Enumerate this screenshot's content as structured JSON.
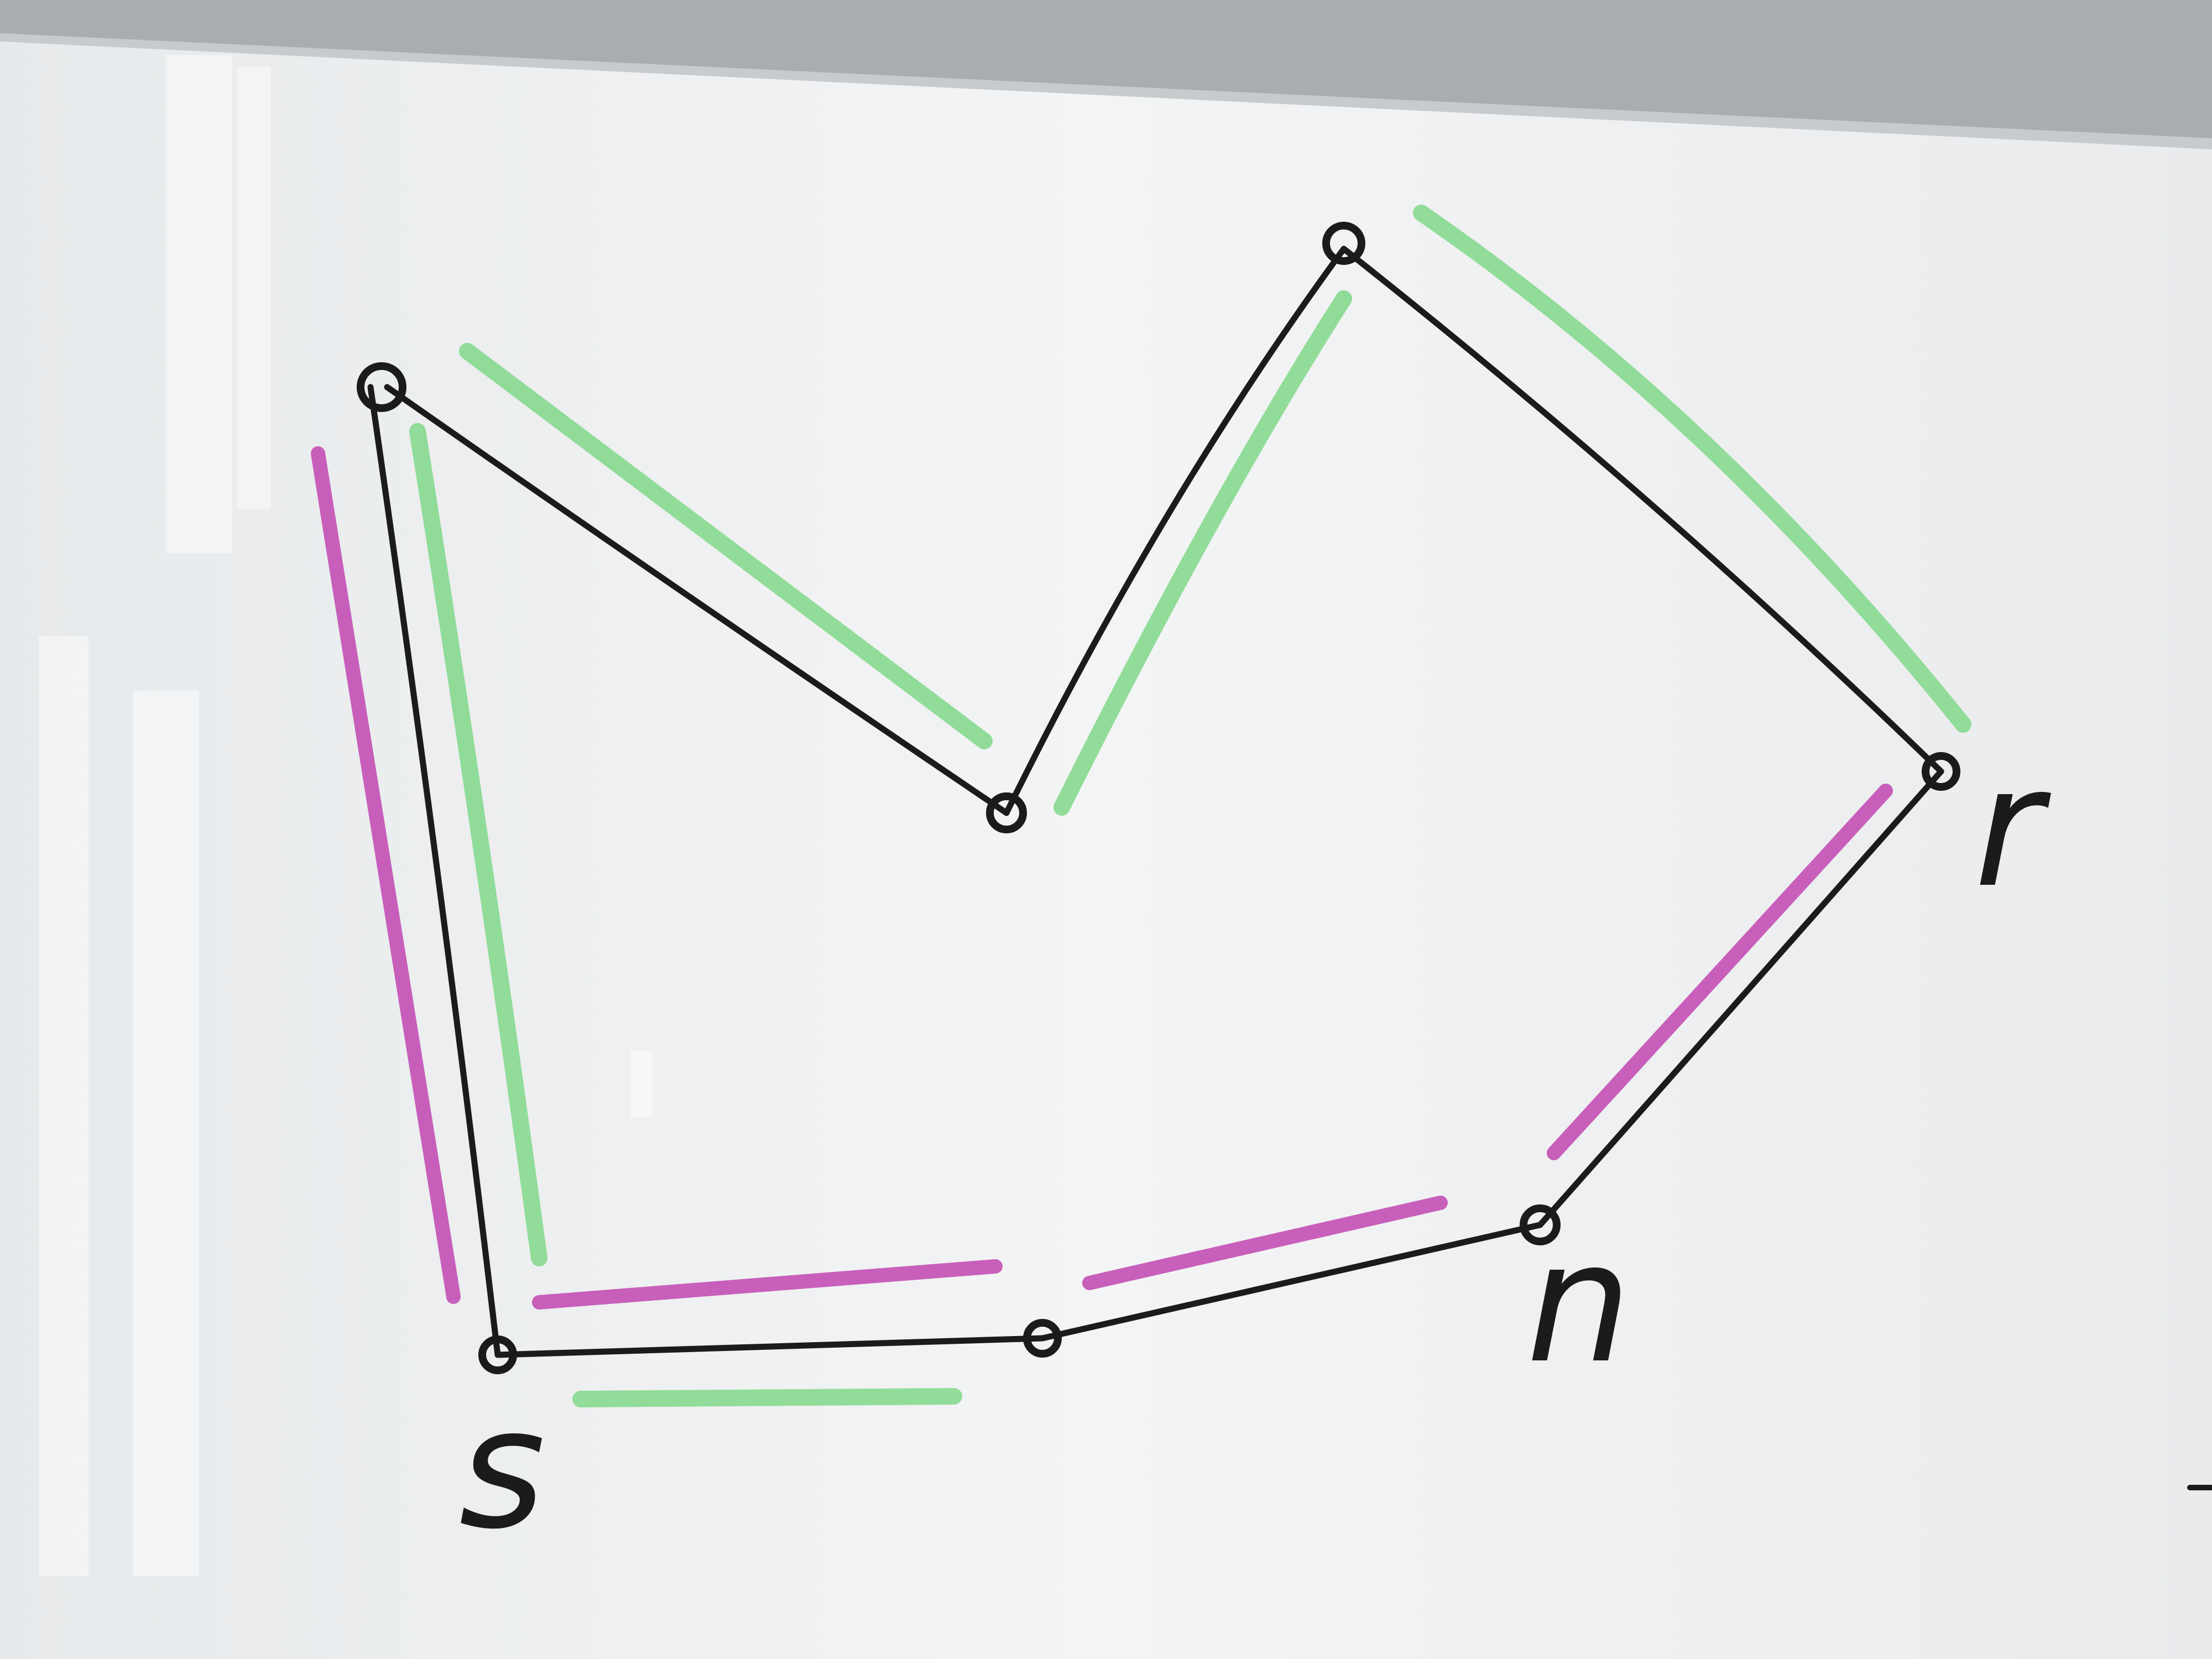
{
  "colors": {
    "board": "#eef0f1",
    "frame": "#a9adb1",
    "ink": "#1b1b1b",
    "green": "#86d98e",
    "magenta": "#c34fb4"
  },
  "vertex_labels": {
    "s": "s",
    "n": "n",
    "r": "r"
  },
  "graph": {
    "vertices": [
      "s",
      "top-left",
      "valley",
      "peak",
      "r",
      "n",
      "mid-bottom"
    ],
    "edges": [
      [
        "s",
        "top-left"
      ],
      [
        "top-left",
        "valley"
      ],
      [
        "valley",
        "peak"
      ],
      [
        "peak",
        "r"
      ],
      [
        "r",
        "n"
      ],
      [
        "n",
        "mid-bottom"
      ],
      [
        "mid-bottom",
        "s"
      ]
    ],
    "green_highlighted_edges": [
      [
        "s",
        "top-left"
      ],
      [
        "top-left",
        "valley"
      ],
      [
        "valley",
        "peak"
      ],
      [
        "peak",
        "r"
      ],
      [
        "s",
        "mid-bottom"
      ]
    ],
    "magenta_highlighted_edges": [
      [
        "s",
        "top-left"
      ],
      [
        "s",
        "mid-bottom"
      ],
      [
        "mid-bottom",
        "n"
      ],
      [
        "n",
        "r"
      ]
    ]
  }
}
